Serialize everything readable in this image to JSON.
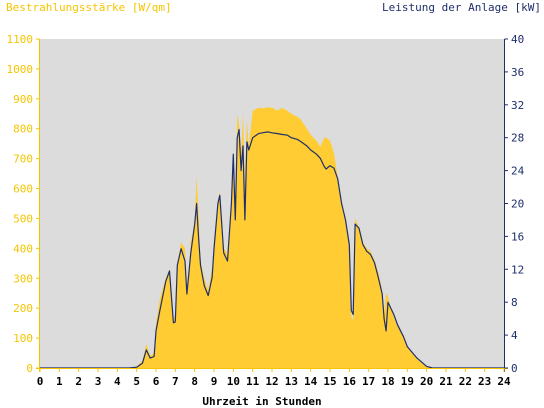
{
  "chart_data": {
    "type": "area",
    "left_axis_title": "Bestrahlungsstärke [W/qm]",
    "right_axis_title": "Leistung der Anlage [kW]",
    "xlabel": "Uhrzeit in Stunden",
    "xlim": [
      0,
      24
    ],
    "ylim_left": [
      0,
      1100
    ],
    "ylim_right": [
      0,
      40
    ],
    "x_ticks": [
      "0",
      "1",
      "2",
      "3",
      "4",
      "5",
      "6",
      "7",
      "8",
      "9",
      "10",
      "11",
      "12",
      "13",
      "14",
      "15",
      "16",
      "17",
      "18",
      "19",
      "20",
      "21",
      "22",
      "23",
      "24"
    ],
    "y_ticks_left": [
      "0",
      "100",
      "200",
      "300",
      "400",
      "500",
      "600",
      "700",
      "800",
      "900",
      "1000",
      "1100"
    ],
    "y_ticks_right": [
      "0",
      "4",
      "8",
      "12",
      "16",
      "20",
      "24",
      "28",
      "32",
      "36",
      "40"
    ],
    "grid": false,
    "colors": {
      "plot_background": "#dcdcdc",
      "irradiance_fill": "#ffcc33",
      "power_line": "#1f2f6b",
      "left_axis_text": "#f5c400",
      "right_axis_text": "#1f2f6b"
    },
    "series": [
      {
        "name": "Bestrahlungsstärke [W/qm]",
        "axis": "left",
        "style": "area",
        "x": [
          0,
          4.6,
          5.0,
          5.3,
          5.5,
          5.7,
          5.9,
          6.0,
          6.2,
          6.5,
          6.7,
          6.9,
          7.0,
          7.1,
          7.3,
          7.5,
          7.6,
          7.8,
          8.0,
          8.1,
          8.2,
          8.3,
          8.5,
          8.7,
          8.9,
          9.0,
          9.2,
          9.3,
          9.5,
          9.7,
          9.9,
          10.0,
          10.1,
          10.2,
          10.3,
          10.4,
          10.5,
          10.6,
          10.7,
          10.8,
          11.0,
          11.3,
          11.5,
          11.8,
          12.0,
          12.3,
          12.5,
          12.8,
          13.0,
          13.3,
          13.5,
          13.8,
          14.0,
          14.3,
          14.5,
          14.7,
          14.8,
          15.0,
          15.2,
          15.4,
          15.6,
          15.8,
          16.0,
          16.1,
          16.2,
          16.3,
          16.5,
          16.7,
          16.9,
          17.1,
          17.3,
          17.5,
          17.7,
          17.8,
          17.9,
          18.0,
          18.1,
          18.3,
          18.5,
          18.8,
          19.0,
          19.5,
          20.0,
          20.3,
          20.5,
          21.0,
          24
        ],
        "y": [
          0,
          0,
          5,
          25,
          80,
          40,
          50,
          150,
          230,
          300,
          330,
          170,
          170,
          350,
          420,
          400,
          250,
          420,
          490,
          640,
          520,
          360,
          300,
          260,
          330,
          420,
          560,
          590,
          400,
          380,
          560,
          700,
          500,
          850,
          810,
          720,
          850,
          600,
          830,
          740,
          860,
          870,
          868,
          872,
          870,
          860,
          870,
          860,
          850,
          840,
          830,
          800,
          780,
          760,
          740,
          770,
          770,
          760,
          720,
          640,
          560,
          500,
          410,
          170,
          160,
          500,
          470,
          420,
          400,
          390,
          360,
          320,
          260,
          180,
          250,
          240,
          210,
          170,
          140,
          100,
          70,
          30,
          5,
          0,
          0,
          0,
          0
        ],
        "values": [
          0,
          0,
          5,
          25,
          80,
          40,
          50,
          150,
          230,
          300,
          330,
          170,
          170,
          350,
          420,
          400,
          250,
          420,
          490,
          640,
          520,
          360,
          300,
          260,
          330,
          420,
          560,
          590,
          400,
          380,
          560,
          700,
          500,
          850,
          810,
          720,
          850,
          600,
          830,
          740,
          860,
          870,
          868,
          872,
          870,
          860,
          870,
          860,
          850,
          840,
          830,
          800,
          780,
          760,
          740,
          770,
          770,
          760,
          720,
          640,
          560,
          500,
          410,
          170,
          160,
          500,
          470,
          420,
          400,
          390,
          360,
          320,
          260,
          180,
          250,
          240,
          210,
          170,
          140,
          100,
          70,
          30,
          5,
          0,
          0,
          0,
          0
        ]
      },
      {
        "name": "Leistung der Anlage [kW]",
        "axis": "right",
        "style": "line",
        "x": [
          0,
          4.6,
          5.0,
          5.3,
          5.5,
          5.7,
          5.9,
          6.0,
          6.2,
          6.5,
          6.7,
          6.9,
          7.0,
          7.1,
          7.3,
          7.5,
          7.6,
          7.8,
          8.0,
          8.1,
          8.2,
          8.3,
          8.5,
          8.7,
          8.9,
          9.0,
          9.2,
          9.3,
          9.5,
          9.7,
          9.9,
          10.0,
          10.1,
          10.2,
          10.3,
          10.4,
          10.5,
          10.6,
          10.7,
          10.8,
          11.0,
          11.3,
          11.5,
          11.8,
          12.0,
          12.3,
          12.5,
          12.8,
          13.0,
          13.3,
          13.5,
          13.8,
          14.0,
          14.3,
          14.5,
          14.7,
          14.8,
          15.0,
          15.2,
          15.4,
          15.6,
          15.8,
          16.0,
          16.1,
          16.2,
          16.3,
          16.5,
          16.7,
          16.9,
          17.1,
          17.3,
          17.5,
          17.7,
          17.8,
          17.9,
          18.0,
          18.1,
          18.3,
          18.5,
          18.8,
          19.0,
          19.5,
          20.0,
          20.3,
          20.5,
          21.0,
          24
        ],
        "y": [
          0,
          0,
          0.1,
          0.6,
          2.2,
          1.2,
          1.4,
          4.5,
          7.0,
          10.5,
          11.8,
          5.5,
          5.6,
          12.5,
          14.5,
          13.0,
          9.0,
          14.0,
          17.5,
          20.0,
          16.0,
          12.5,
          10.0,
          8.8,
          11.0,
          14.5,
          20.0,
          21.0,
          14.0,
          13.0,
          20.0,
          26.0,
          18.0,
          28.0,
          29.0,
          24.0,
          27.0,
          18.0,
          27.5,
          26.5,
          28.0,
          28.5,
          28.6,
          28.7,
          28.6,
          28.5,
          28.4,
          28.3,
          28.0,
          27.8,
          27.5,
          27.0,
          26.5,
          26.0,
          25.5,
          24.5,
          24.2,
          24.6,
          24.3,
          23.0,
          20.0,
          18.0,
          15.0,
          7.0,
          6.5,
          17.5,
          17.0,
          15.0,
          14.2,
          13.8,
          12.8,
          11.0,
          9.0,
          6.0,
          4.5,
          8.0,
          7.5,
          6.5,
          5.2,
          3.8,
          2.6,
          1.2,
          0.2,
          0,
          0,
          0,
          0
        ],
        "values": [
          0,
          0,
          0.1,
          0.6,
          2.2,
          1.2,
          1.4,
          4.5,
          7.0,
          10.5,
          11.8,
          5.5,
          5.6,
          12.5,
          14.5,
          13.0,
          9.0,
          14.0,
          17.5,
          20.0,
          16.0,
          12.5,
          10.0,
          8.8,
          11.0,
          14.5,
          20.0,
          21.0,
          14.0,
          13.0,
          20.0,
          26.0,
          18.0,
          28.0,
          29.0,
          24.0,
          27.0,
          18.0,
          27.5,
          26.5,
          28.0,
          28.5,
          28.6,
          28.7,
          28.6,
          28.5,
          28.4,
          28.3,
          28.0,
          27.8,
          27.5,
          27.0,
          26.5,
          26.0,
          25.5,
          24.5,
          24.2,
          24.6,
          24.3,
          23.0,
          20.0,
          18.0,
          15.0,
          7.0,
          6.5,
          17.5,
          17.0,
          15.0,
          14.2,
          13.8,
          12.8,
          11.0,
          9.0,
          6.0,
          4.5,
          8.0,
          7.5,
          6.5,
          5.2,
          3.8,
          2.6,
          1.2,
          0.2,
          0,
          0,
          0,
          0
        ]
      }
    ]
  }
}
